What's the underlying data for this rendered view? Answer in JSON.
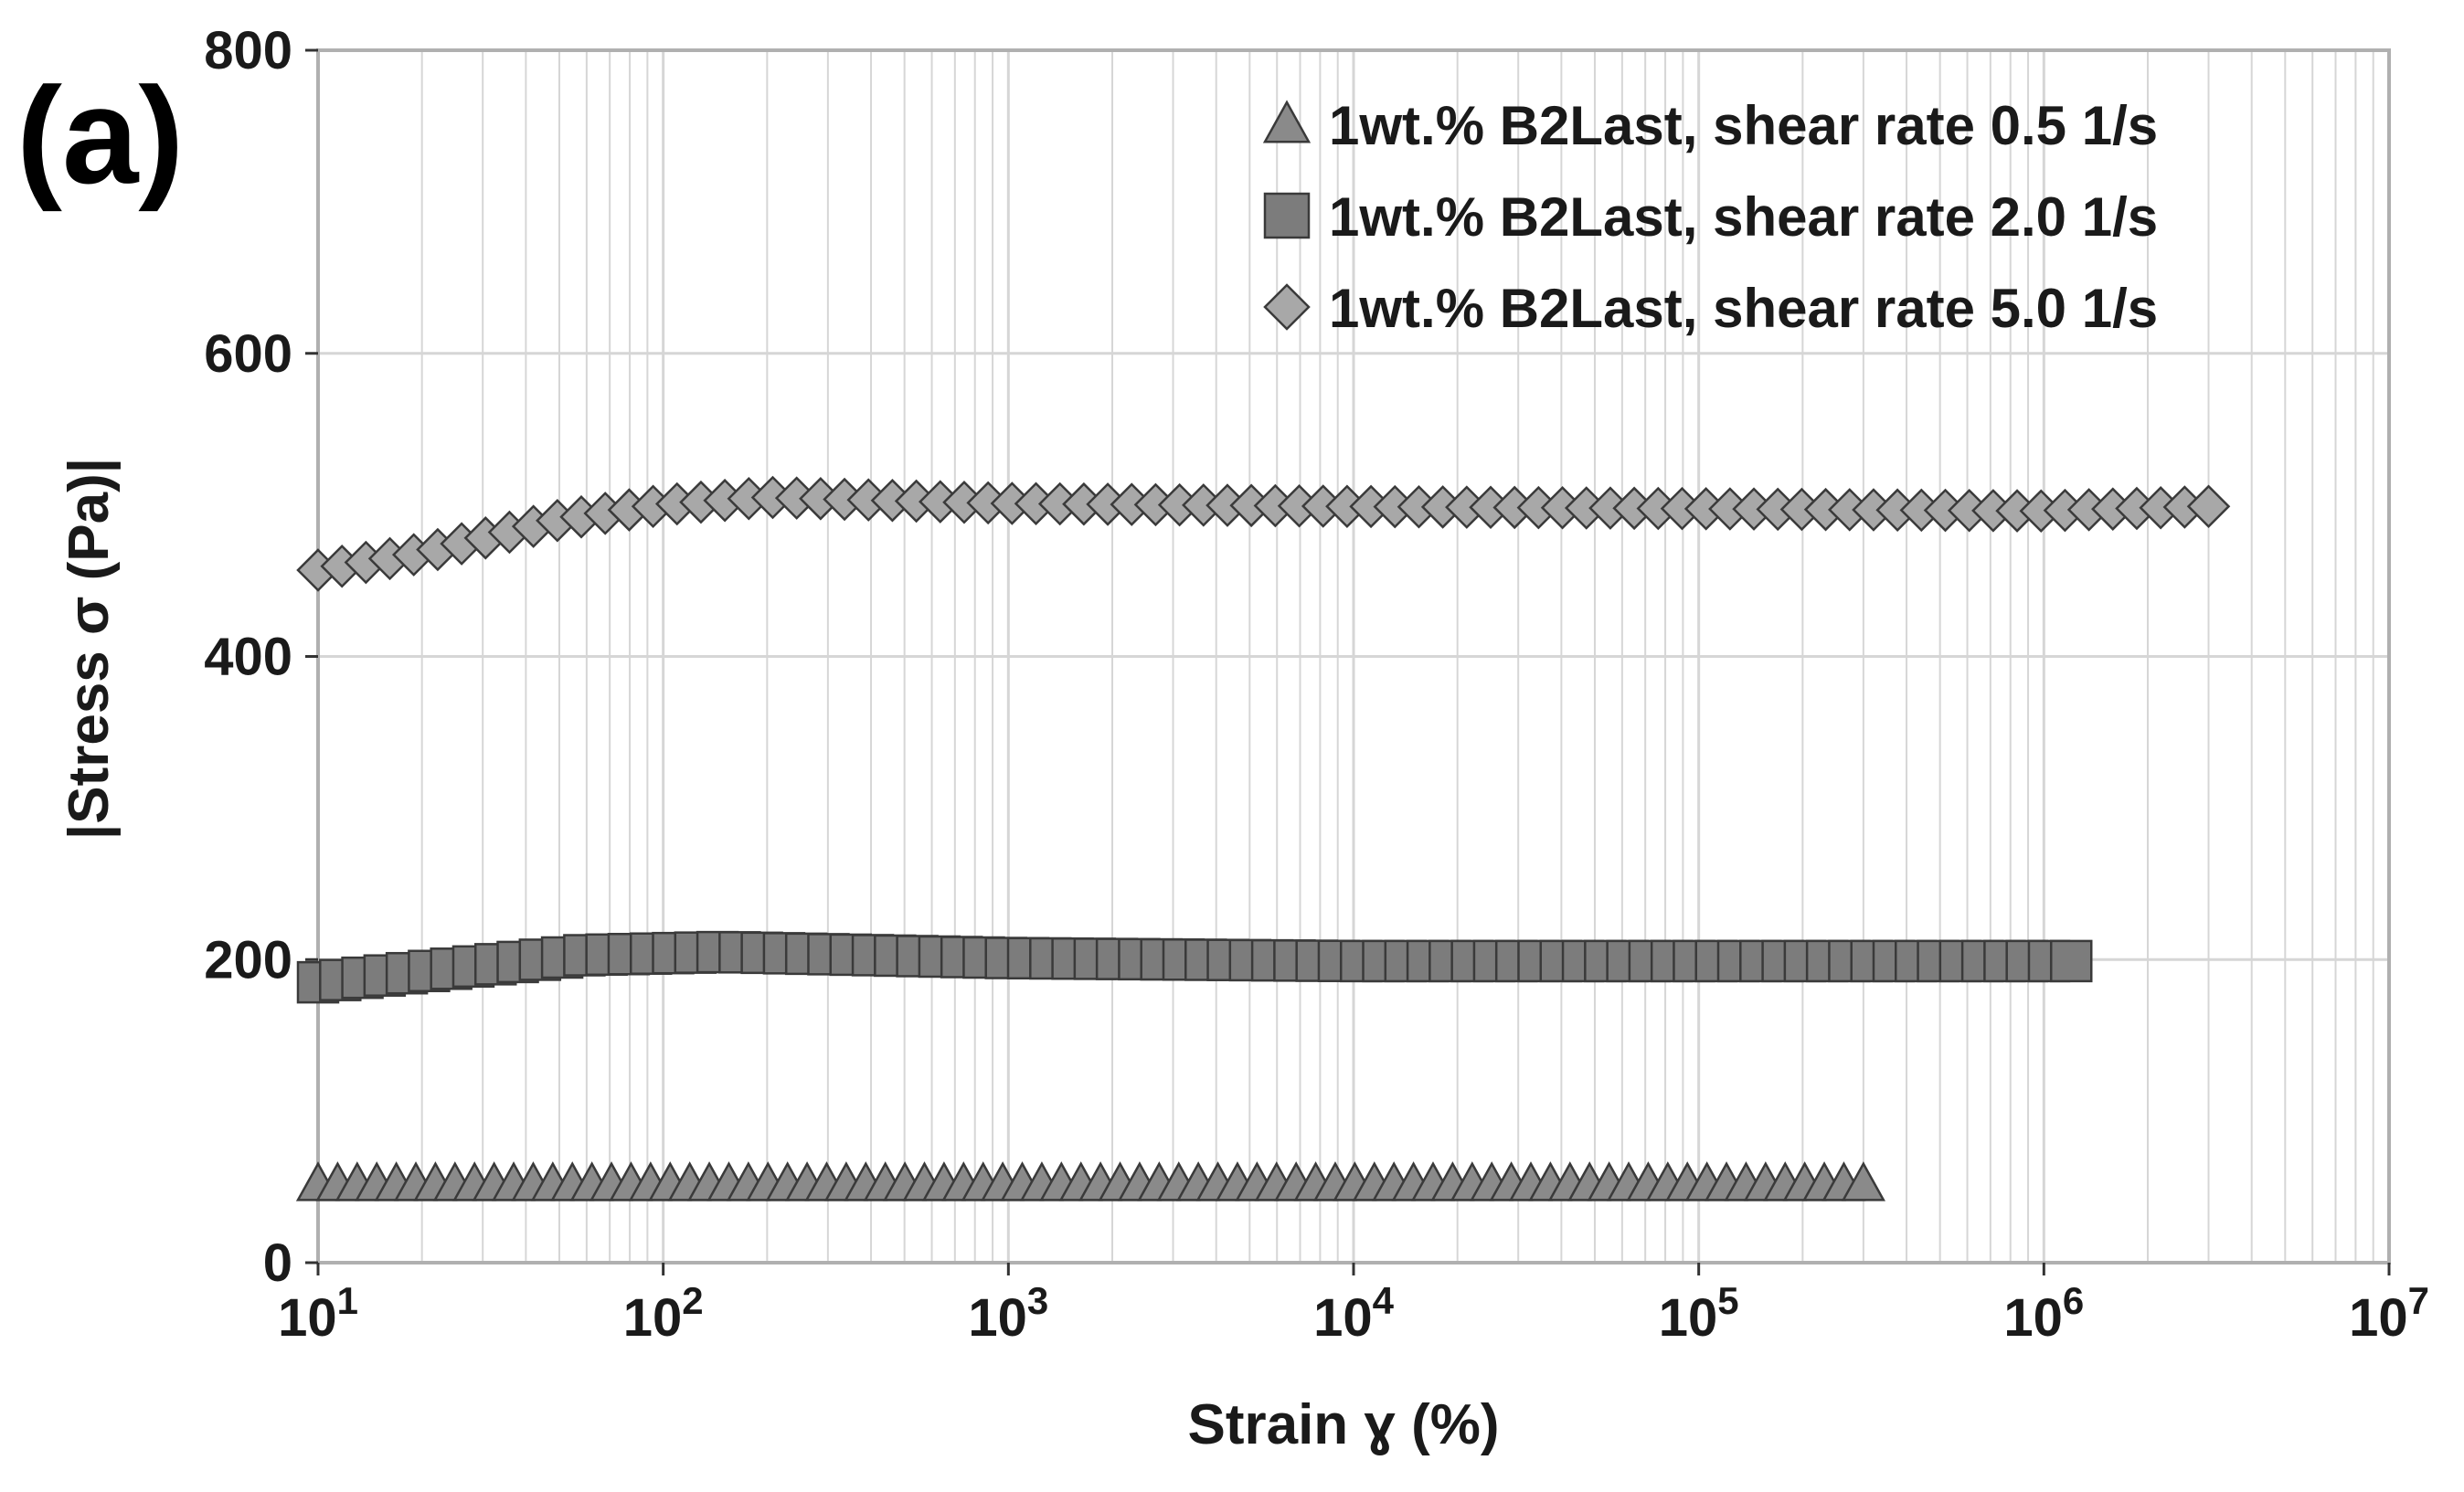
{
  "panel_label": "(a)",
  "colors": {
    "grid": "#d6d6d6",
    "frame": "#b0b0b0",
    "marker_fill_triangle": "#8a8a8a",
    "marker_fill_square": "#7c7c7c",
    "marker_fill_diamond": "#a8a8a8",
    "marker_stroke": "#3a3a3a"
  },
  "chart_data": {
    "type": "scatter",
    "title": "",
    "xlabel": "Strain ɣ (%)",
    "ylabel": "|Stress σ (Pa)|",
    "x_scale": "log",
    "xlim": [
      10,
      10000000
    ],
    "ylim": [
      0,
      800
    ],
    "x_ticks": [
      {
        "base": "10",
        "exp": "1",
        "value": 10
      },
      {
        "base": "10",
        "exp": "2",
        "value": 100
      },
      {
        "base": "10",
        "exp": "3",
        "value": 1000
      },
      {
        "base": "10",
        "exp": "4",
        "value": 10000
      },
      {
        "base": "10",
        "exp": "5",
        "value": 100000
      },
      {
        "base": "10",
        "exp": "6",
        "value": 1000000
      },
      {
        "base": "10",
        "exp": "7",
        "value": 10000000
      }
    ],
    "y_ticks": [
      "0",
      "200",
      "400",
      "600",
      "800"
    ],
    "grid": true,
    "legend_position": "top-right",
    "series": [
      {
        "name": "1wt.% B2Last, shear rate 0.5 1/s",
        "marker": "triangle",
        "x_start": 10,
        "x_end": 300000,
        "n_points": 80,
        "profile": [
          [
            10,
            52
          ],
          [
            300000,
            52
          ]
        ]
      },
      {
        "name": "1wt.% B2Last, shear rate 2.0 1/s",
        "marker": "square",
        "x_start": 10,
        "x_end": 1200000,
        "n_points": 80,
        "profile": [
          [
            10,
            185
          ],
          [
            20,
            192
          ],
          [
            60,
            203
          ],
          [
            150,
            205
          ],
          [
            1000,
            201
          ],
          [
            10000,
            199
          ],
          [
            1200000,
            199
          ]
        ]
      },
      {
        "name": "1wt.% B2Last, shear rate 5.0 1/s",
        "marker": "diamond",
        "x_start": 10,
        "x_end": 3000000,
        "n_points": 80,
        "profile": [
          [
            10,
            457
          ],
          [
            20,
            468
          ],
          [
            50,
            490
          ],
          [
            100,
            500
          ],
          [
            200,
            505
          ],
          [
            1000,
            501
          ],
          [
            10000,
            499
          ],
          [
            1000000,
            496
          ],
          [
            3000000,
            499
          ]
        ]
      }
    ]
  }
}
